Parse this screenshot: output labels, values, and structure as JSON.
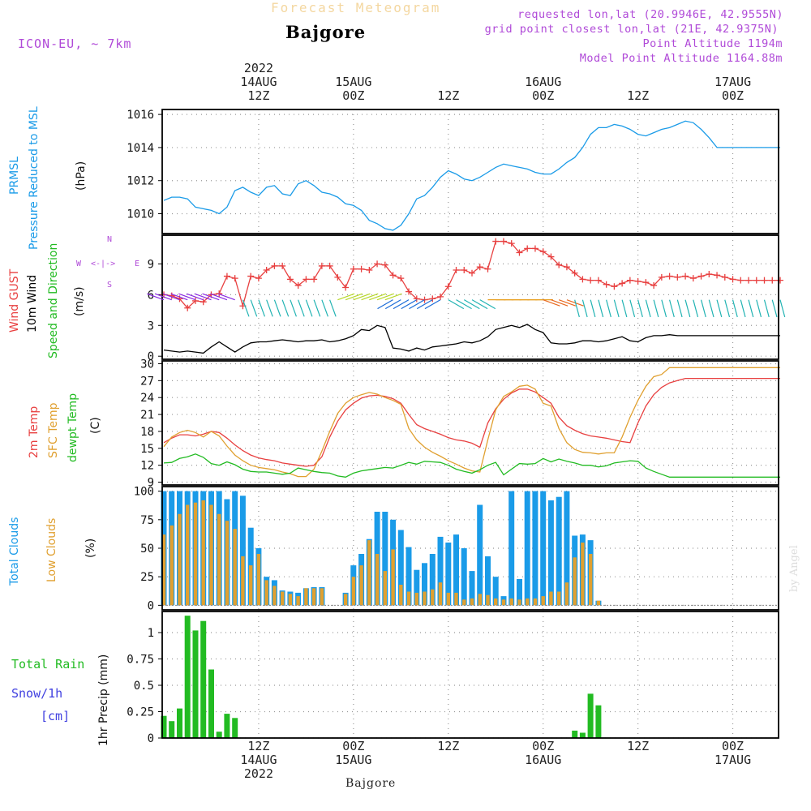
{
  "header": {
    "faint_title": "Forecast Meteogram",
    "location": "Bajgore",
    "model": "ICON-EU, ~ 7km",
    "requested": "requested lon,lat (20.9946E, 42.9555N)",
    "grid_point": "grid point closest lon,lat (21E, 42.9375N)",
    "point_altitude": "Point Altitude 1194m",
    "model_altitude": "Model Point Altitude 1164.88m"
  },
  "top_axis": [
    {
      "line1": "2022",
      "line2": "14AUG",
      "line3": "12Z",
      "hour": 12
    },
    {
      "line1": "",
      "line2": "15AUG",
      "line3": "00Z",
      "hour": 24
    },
    {
      "line1": "",
      "line2": "",
      "line3": "12Z",
      "hour": 36
    },
    {
      "line1": "",
      "line2": "16AUG",
      "line3": "00Z",
      "hour": 48
    },
    {
      "line1": "",
      "line2": "",
      "line3": "12Z",
      "hour": 60
    },
    {
      "line1": "",
      "line2": "17AUG",
      "line3": "00Z",
      "hour": 72
    }
  ],
  "bottom_axis": [
    {
      "line1": "12Z",
      "line2": "14AUG",
      "line3": "2022",
      "hour": 12
    },
    {
      "line1": "00Z",
      "line2": "15AUG",
      "line3": "",
      "hour": 24
    },
    {
      "line1": "12Z",
      "line2": "",
      "line3": "",
      "hour": 36
    },
    {
      "line1": "00Z",
      "line2": "16AUG",
      "line3": "",
      "hour": 48
    },
    {
      "line1": "12Z",
      "line2": "",
      "line3": "",
      "hour": 60
    },
    {
      "line1": "00Z",
      "line2": "17AUG",
      "line3": "",
      "hour": 72
    }
  ],
  "footer_location": "Bajgore",
  "credit": "by Angel",
  "panel_labels": {
    "pressure": {
      "a": "PRMSL",
      "b": "Pressure Reduced to MSL",
      "unit": "(hPa)",
      "color_a": "#1a9be8",
      "color_b": "#1a9be8"
    },
    "wind": {
      "a": "Wind GUST",
      "b": "10m Wind",
      "c": "Speed and Direction",
      "unit": "(m/s)",
      "color_a": "#e84040",
      "color_b": "#000000",
      "color_c": "#22bb22",
      "compass": {
        "n": "N",
        "s": "S",
        "w": "W",
        "e": "E",
        "arrow": "<-|->"
      }
    },
    "temp": {
      "a": "2m Temp",
      "b": "SFC Temp",
      "c": "dewpt Temp",
      "unit": "(C)",
      "color_a": "#e84040",
      "color_b": "#e0a030",
      "color_c": "#22bb22"
    },
    "clouds": {
      "a": "Total Clouds",
      "b": "Low Clouds",
      "unit": "(%)",
      "color_a": "#1a9be8",
      "color_b": "#e0a030"
    },
    "precip": {
      "rain": "Total  Rain",
      "snow": "Snow/1h",
      "snow_unit": "[cm]",
      "ylabel": "1hr Precip (mm)",
      "color_rain": "#22bb22",
      "color_snow": "#4040e0"
    }
  },
  "chart_data": [
    {
      "type": "line",
      "name": "pressure",
      "x_range": [
        0,
        78
      ],
      "ylim": [
        1008.8,
        1016.3
      ],
      "yticks": [
        1010,
        1012,
        1014,
        1016
      ],
      "grid": true,
      "series": [
        {
          "name": "PRMSL",
          "color": "#1a9be8",
          "x": [
            0,
            1,
            2,
            3,
            4,
            5,
            6,
            7,
            8,
            9,
            10,
            11,
            12,
            13,
            14,
            15,
            16,
            17,
            18,
            19,
            20,
            21,
            22,
            23,
            24,
            25,
            26,
            27,
            28,
            29,
            30,
            31,
            32,
            33,
            34,
            35,
            36,
            37,
            38,
            39,
            40,
            41,
            42,
            43,
            44,
            45,
            46,
            47,
            48,
            49,
            50,
            51,
            52,
            53,
            54,
            55,
            56,
            57,
            58,
            59,
            60,
            61,
            62,
            63,
            64,
            65,
            66,
            67,
            68,
            69,
            70,
            71,
            72,
            73,
            74,
            75,
            76,
            77,
            78
          ],
          "values": [
            1010.8,
            1011.0,
            1011.0,
            1010.9,
            1010.4,
            1010.3,
            1010.2,
            1010.0,
            1010.4,
            1011.4,
            1011.6,
            1011.3,
            1011.1,
            1011.6,
            1011.7,
            1011.2,
            1011.1,
            1011.8,
            1012.0,
            1011.7,
            1011.3,
            1011.2,
            1011.0,
            1010.6,
            1010.5,
            1010.2,
            1009.6,
            1009.4,
            1009.1,
            1009.0,
            1009.3,
            1010.0,
            1010.9,
            1011.1,
            1011.6,
            1012.2,
            1012.6,
            1012.4,
            1012.1,
            1012.0,
            1012.2,
            1012.5,
            1012.8,
            1013.0,
            1012.9,
            1012.8,
            1012.7,
            1012.5,
            1012.4,
            1012.4,
            1012.7,
            1013.1,
            1013.4,
            1014.0,
            1014.8,
            1015.2,
            1015.2,
            1015.4,
            1015.3,
            1015.1,
            1014.8,
            1014.7,
            1014.9,
            1015.1,
            1015.2,
            1015.4,
            1015.6,
            1015.5,
            1015.1,
            1014.6,
            1014.0,
            1014.0,
            1014.0,
            1014.0,
            1014.0,
            1014.0,
            1014.0,
            1014.0,
            1014.0
          ]
        }
      ]
    },
    {
      "type": "line",
      "name": "wind",
      "ylim": [
        -0.3,
        11.8
      ],
      "yticks": [
        0,
        3,
        6,
        9
      ],
      "grid": true,
      "series": [
        {
          "name": "Wind GUST",
          "color": "#e84040",
          "marker": "+",
          "values": [
            6.0,
            5.9,
            5.6,
            4.7,
            5.4,
            5.3,
            6.0,
            6.1,
            7.8,
            7.6,
            4.9,
            7.8,
            7.6,
            8.4,
            8.8,
            8.8,
            7.5,
            6.9,
            7.5,
            7.5,
            8.8,
            8.8,
            7.7,
            6.7,
            8.5,
            8.5,
            8.4,
            9.0,
            8.9,
            7.9,
            7.6,
            6.3,
            5.6,
            5.5,
            5.6,
            5.8,
            6.8,
            8.4,
            8.4,
            8.1,
            8.7,
            8.5,
            11.2,
            11.2,
            11.0,
            10.1,
            10.5,
            10.5,
            10.2,
            9.7,
            8.9,
            8.7,
            8.1,
            7.5,
            7.4,
            7.4,
            7.0,
            6.8,
            7.1,
            7.4,
            7.3,
            7.2,
            6.9,
            7.7,
            7.8,
            7.7,
            7.8,
            7.6,
            7.8,
            8.0,
            7.9,
            7.7,
            7.5,
            7.4,
            7.4,
            7.4,
            7.4,
            7.4,
            7.4
          ]
        },
        {
          "name": "10m Wind",
          "color": "#000000",
          "values": [
            0.6,
            0.5,
            0.4,
            0.5,
            0.4,
            0.3,
            0.9,
            1.4,
            0.9,
            0.4,
            0.9,
            1.3,
            1.4,
            1.4,
            1.5,
            1.6,
            1.5,
            1.4,
            1.5,
            1.5,
            1.6,
            1.4,
            1.5,
            1.7,
            2.0,
            2.6,
            2.5,
            3.0,
            2.8,
            0.8,
            0.7,
            0.5,
            0.8,
            0.6,
            0.9,
            1.0,
            1.1,
            1.2,
            1.4,
            1.3,
            1.5,
            1.9,
            2.6,
            2.8,
            3.0,
            2.8,
            3.1,
            2.6,
            2.3,
            1.3,
            1.2,
            1.2,
            1.3,
            1.5,
            1.5,
            1.4,
            1.5,
            1.7,
            1.9,
            1.5,
            1.4,
            1.8,
            2.0,
            2.0,
            2.1,
            2.0,
            2.0,
            2.0,
            2.0,
            2.0,
            2.0,
            2.0,
            2.0,
            2.0,
            2.0,
            2.0,
            2.0,
            2.0,
            2.0
          ]
        }
      ]
    },
    {
      "type": "line",
      "name": "temperature",
      "ylim": [
        8.5,
        30.5
      ],
      "yticks": [
        9,
        12,
        15,
        18,
        21,
        24,
        27,
        30
      ],
      "grid": true,
      "series": [
        {
          "name": "2m Temp",
          "color": "#e84040",
          "values": [
            16.0,
            16.8,
            17.4,
            17.4,
            17.2,
            17.5,
            18.0,
            17.8,
            16.8,
            15.6,
            14.6,
            13.8,
            13.3,
            13.0,
            12.8,
            12.4,
            12.2,
            12.0,
            11.8,
            12.0,
            13.5,
            17.0,
            19.8,
            21.8,
            23.0,
            23.9,
            24.3,
            24.4,
            24.2,
            23.8,
            23.0,
            21.0,
            19.2,
            18.5,
            18.0,
            17.5,
            16.9,
            16.5,
            16.3,
            15.9,
            15.2,
            19.5,
            22.0,
            23.7,
            24.8,
            25.5,
            25.5,
            25.0,
            24.0,
            23.0,
            20.5,
            19.0,
            18.2,
            17.6,
            17.2,
            17.0,
            16.8,
            16.5,
            16.2,
            16.0,
            19.5,
            22.5,
            24.5,
            25.8,
            26.6,
            27.0,
            27.4,
            27.4,
            27.4,
            27.4,
            27.4,
            27.4,
            27.4,
            27.4,
            27.4,
            27.4,
            27.4,
            27.4,
            27.4
          ]
        },
        {
          "name": "SFC Temp",
          "color": "#e0a030",
          "values": [
            15.3,
            17.0,
            17.8,
            18.2,
            17.8,
            17.0,
            18.0,
            17.2,
            15.4,
            13.8,
            12.8,
            12.0,
            11.6,
            11.4,
            11.2,
            10.8,
            10.5,
            10.0,
            10.0,
            11.3,
            14.5,
            18.0,
            21.2,
            23.0,
            24.0,
            24.5,
            24.9,
            24.6,
            24.0,
            23.5,
            22.8,
            18.5,
            16.5,
            15.2,
            14.3,
            13.6,
            12.8,
            12.2,
            11.5,
            11.0,
            10.8,
            16.5,
            21.8,
            24.2,
            25.0,
            26.0,
            26.2,
            25.5,
            23.0,
            22.5,
            18.5,
            16.0,
            14.8,
            14.3,
            14.2,
            14.0,
            14.2,
            14.2,
            17.0,
            20.5,
            23.5,
            26.0,
            27.7,
            28.1,
            29.3,
            29.3,
            29.3,
            29.3,
            29.3,
            29.3,
            29.3,
            29.3,
            29.3,
            29.3,
            29.3,
            29.3,
            29.3,
            29.3,
            29.3
          ]
        },
        {
          "name": "dewpt Temp",
          "color": "#22bb22",
          "values": [
            12.4,
            12.5,
            13.2,
            13.5,
            14.0,
            13.4,
            12.3,
            12.0,
            12.6,
            12.1,
            11.3,
            10.9,
            10.8,
            10.8,
            10.6,
            10.4,
            10.6,
            11.5,
            11.2,
            10.9,
            10.7,
            10.6,
            10.1,
            9.9,
            10.6,
            11.0,
            11.2,
            11.4,
            11.6,
            11.5,
            12.0,
            12.5,
            12.2,
            12.7,
            12.6,
            12.5,
            12.0,
            11.3,
            10.9,
            10.6,
            11.2,
            12.0,
            12.5,
            10.3,
            11.3,
            12.3,
            12.2,
            12.3,
            13.2,
            12.6,
            13.1,
            12.7,
            12.4,
            12.0,
            12.0,
            11.7,
            11.9,
            12.4,
            12.6,
            12.8,
            12.7,
            11.5,
            10.9,
            10.4,
            9.9,
            9.9,
            9.9,
            9.9,
            9.9,
            9.9,
            9.9,
            9.9,
            9.9,
            9.9,
            9.9,
            9.9,
            9.9,
            9.9,
            9.9
          ]
        }
      ]
    },
    {
      "type": "bar",
      "name": "clouds",
      "ylim": [
        -4,
        104
      ],
      "yticks": [
        0,
        25,
        50,
        75,
        100
      ],
      "grid": true,
      "series": [
        {
          "name": "Total Clouds",
          "color": "#1a9be8",
          "values": [
            100,
            100,
            100,
            100,
            100,
            100,
            100,
            100,
            93,
            100,
            96,
            68,
            50,
            25,
            22,
            13,
            12,
            11,
            15,
            16,
            16,
            0,
            0,
            11,
            35,
            45,
            58,
            82,
            82,
            75,
            66,
            51,
            31,
            37,
            45,
            60,
            55,
            62,
            50,
            30,
            88,
            43,
            25,
            8,
            100,
            23,
            100,
            100,
            100,
            92,
            95,
            100,
            61,
            62,
            57,
            4,
            0,
            0,
            0,
            0,
            0,
            0,
            0,
            0,
            0,
            0,
            0,
            0,
            0,
            0,
            0,
            0,
            0,
            0,
            0,
            0,
            0,
            0,
            0
          ]
        },
        {
          "name": "Low Clouds",
          "color": "#e0a030",
          "values": [
            62,
            70,
            80,
            88,
            90,
            92,
            88,
            80,
            74,
            67,
            43,
            35,
            45,
            22,
            17,
            12,
            10,
            8,
            15,
            15,
            15,
            0,
            0,
            10,
            25,
            35,
            57,
            45,
            30,
            49,
            18,
            12,
            11,
            12,
            14,
            20,
            11,
            11,
            5,
            6,
            10,
            9,
            6,
            5,
            6,
            5,
            6,
            6,
            8,
            12,
            12,
            20,
            42,
            55,
            45,
            4,
            0,
            0,
            0,
            0,
            0,
            0,
            0,
            0,
            0,
            0,
            0,
            0,
            0,
            0,
            0,
            0,
            0,
            0,
            0,
            0,
            0,
            0,
            0
          ]
        }
      ]
    },
    {
      "type": "bar",
      "name": "precipitation",
      "ylim": [
        0,
        1.2
      ],
      "yticks": [
        0,
        0.25,
        0.5,
        0.75,
        1
      ],
      "grid": true,
      "series": [
        {
          "name": "Total Rain",
          "color": "#22bb22",
          "values": [
            0.21,
            0.16,
            0.28,
            1.16,
            1.02,
            1.11,
            0.65,
            0.06,
            0.23,
            0.19,
            0,
            0,
            0,
            0,
            0,
            0,
            0,
            0,
            0,
            0,
            0,
            0,
            0,
            0,
            0,
            0,
            0,
            0,
            0,
            0,
            0,
            0,
            0,
            0,
            0,
            0,
            0,
            0,
            0,
            0,
            0,
            0,
            0,
            0,
            0,
            0,
            0,
            0,
            0,
            0,
            0,
            0,
            0.07,
            0.05,
            0.42,
            0.31,
            0,
            0,
            0,
            0,
            0,
            0,
            0,
            0,
            0,
            0,
            0,
            0,
            0,
            0,
            0,
            0,
            0,
            0,
            0,
            0,
            0,
            0,
            0
          ]
        }
      ]
    }
  ]
}
